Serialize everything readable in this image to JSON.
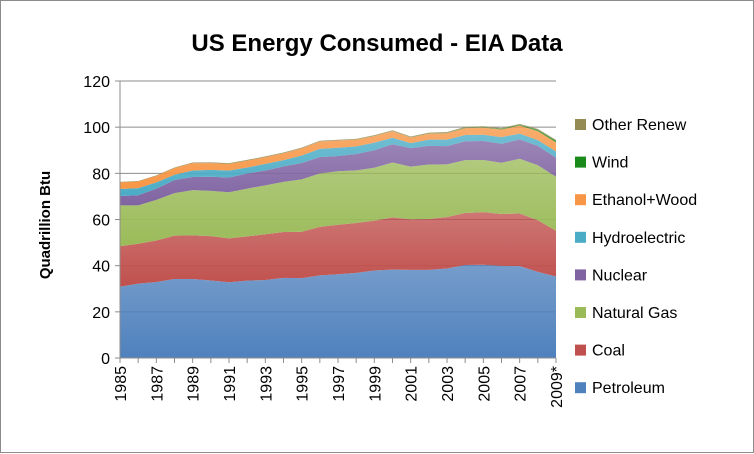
{
  "chart_data": {
    "type": "area",
    "stacked": true,
    "title": "US Energy Consumed - EIA Data",
    "xlabel": "",
    "ylabel": "Quadrillion Btu",
    "ylim": [
      0,
      120
    ],
    "yticks": [
      "0",
      "20",
      "40",
      "60",
      "80",
      "100",
      "120"
    ],
    "x": [
      "1985",
      "1986",
      "1987",
      "1988",
      "1989",
      "1990",
      "1991",
      "1992",
      "1993",
      "1994",
      "1995",
      "1996",
      "1997",
      "1998",
      "1999",
      "2000",
      "2001",
      "2002",
      "2003",
      "2004",
      "2005",
      "2006",
      "2007",
      "2008",
      "2009*"
    ],
    "xtick_labels": [
      "1985",
      "1987",
      "1989",
      "1991",
      "1993",
      "1995",
      "1997",
      "1999",
      "2001",
      "2003",
      "2005",
      "2007",
      "2009*"
    ],
    "grid": "horizontal",
    "legend_position": "right",
    "series": [
      {
        "name": "Petroleum",
        "color": "#4f81bd",
        "values": [
          30.9,
          32.2,
          32.9,
          34.2,
          34.2,
          33.6,
          32.8,
          33.5,
          33.8,
          34.7,
          34.6,
          35.8,
          36.3,
          36.9,
          37.9,
          38.3,
          38.2,
          38.2,
          38.8,
          40.3,
          40.4,
          39.9,
          39.8,
          37.3,
          35.3
        ]
      },
      {
        "name": "Coal",
        "color": "#c0504d",
        "values": [
          17.5,
          17.3,
          18.0,
          18.8,
          18.9,
          19.2,
          19.0,
          19.2,
          19.8,
          19.9,
          20.1,
          21.0,
          21.4,
          21.6,
          21.6,
          22.6,
          21.9,
          22.0,
          22.3,
          22.5,
          22.8,
          22.5,
          22.8,
          22.4,
          19.8
        ]
      },
      {
        "name": "Natural Gas",
        "color": "#9bbb59",
        "values": [
          17.7,
          16.6,
          17.6,
          18.4,
          19.6,
          19.6,
          20.0,
          20.7,
          21.2,
          21.7,
          22.7,
          23.1,
          23.2,
          22.8,
          22.9,
          23.8,
          22.8,
          23.6,
          22.8,
          22.9,
          22.6,
          22.2,
          23.7,
          23.8,
          23.4
        ]
      },
      {
        "name": "Nuclear",
        "color": "#8064a2",
        "values": [
          4.1,
          4.4,
          4.9,
          5.7,
          5.7,
          6.1,
          6.4,
          6.5,
          6.4,
          6.7,
          7.1,
          7.1,
          6.6,
          7.1,
          7.6,
          7.9,
          8.0,
          8.1,
          7.9,
          8.2,
          8.2,
          8.2,
          8.4,
          8.4,
          8.3
        ]
      },
      {
        "name": "Hydroelectric",
        "color": "#4bacc6",
        "values": [
          3.0,
          3.1,
          2.7,
          2.3,
          2.8,
          3.0,
          3.0,
          2.6,
          2.9,
          2.7,
          3.2,
          3.6,
          3.6,
          3.3,
          3.3,
          2.8,
          2.2,
          2.7,
          2.8,
          2.7,
          2.7,
          2.9,
          2.5,
          2.5,
          2.7
        ]
      },
      {
        "name": "Ethanol+Wood",
        "color": "#f79646",
        "values": [
          2.9,
          2.9,
          2.8,
          2.9,
          3.2,
          2.9,
          2.9,
          3.0,
          2.9,
          3.0,
          3.1,
          3.2,
          3.1,
          2.9,
          2.9,
          2.9,
          2.5,
          2.6,
          2.8,
          3.0,
          3.1,
          3.3,
          3.5,
          3.9,
          3.9
        ]
      },
      {
        "name": "Wind",
        "color": "#1a8a1a",
        "values": [
          0.0,
          0.0,
          0.0,
          0.0,
          0.0,
          0.03,
          0.03,
          0.03,
          0.03,
          0.04,
          0.03,
          0.03,
          0.03,
          0.03,
          0.05,
          0.06,
          0.07,
          0.11,
          0.12,
          0.14,
          0.18,
          0.26,
          0.34,
          0.55,
          0.7
        ]
      },
      {
        "name": "Other Renew",
        "color": "#948a54",
        "values": [
          0.2,
          0.2,
          0.2,
          0.2,
          0.3,
          0.3,
          0.3,
          0.3,
          0.3,
          0.3,
          0.3,
          0.3,
          0.3,
          0.3,
          0.3,
          0.3,
          0.3,
          0.3,
          0.4,
          0.4,
          0.4,
          0.4,
          0.4,
          0.4,
          0.4
        ]
      }
    ]
  }
}
